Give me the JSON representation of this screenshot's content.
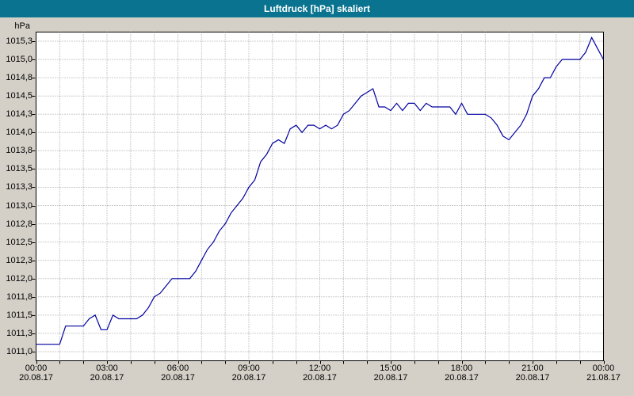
{
  "window": {
    "title": "Luftdruck [hPa] skaliert"
  },
  "colors": {
    "titlebar_bg": "#0a7490",
    "titlebar_text": "#ffffff",
    "page_bg": "#d4d0c8",
    "plot_bg": "#ffffff",
    "plot_border": "#000000",
    "grid": "#9a9a9a",
    "line": "#0000a0",
    "tick": "#000000",
    "label_text": "#000000"
  },
  "chart_data": {
    "type": "line",
    "title": "Luftdruck [hPa] skaliert",
    "ylabel": "hPa",
    "xlabel": "",
    "ylim": [
      1010.875,
      1015.375
    ],
    "xlim_hours": [
      0,
      24
    ],
    "grid": "dotted; vertical every 1 h, horizontal every 0.25 hPa",
    "legend": "none",
    "y_ticks": [
      {
        "value": 1015.25,
        "label": "1015,3"
      },
      {
        "value": 1015.0,
        "label": "1015,0"
      },
      {
        "value": 1014.75,
        "label": "1014,8"
      },
      {
        "value": 1014.5,
        "label": "1014,5"
      },
      {
        "value": 1014.25,
        "label": "1014,3"
      },
      {
        "value": 1014.0,
        "label": "1014,0"
      },
      {
        "value": 1013.75,
        "label": "1013,8"
      },
      {
        "value": 1013.5,
        "label": "1013,5"
      },
      {
        "value": 1013.25,
        "label": "1013,3"
      },
      {
        "value": 1013.0,
        "label": "1013,0"
      },
      {
        "value": 1012.75,
        "label": "1012,8"
      },
      {
        "value": 1012.5,
        "label": "1012,5"
      },
      {
        "value": 1012.25,
        "label": "1012,3"
      },
      {
        "value": 1012.0,
        "label": "1012,0"
      },
      {
        "value": 1011.75,
        "label": "1011,8"
      },
      {
        "value": 1011.5,
        "label": "1011,5"
      },
      {
        "value": 1011.25,
        "label": "1011,3"
      },
      {
        "value": 1011.0,
        "label": "1011,0"
      }
    ],
    "x_ticks": [
      {
        "hour": 0,
        "time": "00:00",
        "date": "20.08.17"
      },
      {
        "hour": 3,
        "time": "03:00",
        "date": "20.08.17"
      },
      {
        "hour": 6,
        "time": "06:00",
        "date": "20.08.17"
      },
      {
        "hour": 9,
        "time": "09:00",
        "date": "20.08.17"
      },
      {
        "hour": 12,
        "time": "12:00",
        "date": "20.08.17"
      },
      {
        "hour": 15,
        "time": "15:00",
        "date": "20.08.17"
      },
      {
        "hour": 18,
        "time": "18:00",
        "date": "20.08.17"
      },
      {
        "hour": 21,
        "time": "21:00",
        "date": "20.08.17"
      },
      {
        "hour": 24,
        "time": "00:00",
        "date": "21.08.17"
      }
    ],
    "x_minor_tick_hours": 1,
    "series": [
      {
        "name": "Luftdruck",
        "unit": "hPa",
        "x_start_hour": 0,
        "x_step_hours": 0.25,
        "values": [
          1011.1,
          1011.1,
          1011.1,
          1011.1,
          1011.1,
          1011.35,
          1011.35,
          1011.35,
          1011.35,
          1011.45,
          1011.5,
          1011.3,
          1011.3,
          1011.5,
          1011.45,
          1011.45,
          1011.45,
          1011.45,
          1011.5,
          1011.6,
          1011.75,
          1011.8,
          1011.9,
          1012.0,
          1012.0,
          1012.0,
          1012.0,
          1012.1,
          1012.25,
          1012.4,
          1012.5,
          1012.65,
          1012.75,
          1012.9,
          1013.0,
          1013.1,
          1013.25,
          1013.35,
          1013.6,
          1013.7,
          1013.85,
          1013.9,
          1013.85,
          1014.05,
          1014.1,
          1014.0,
          1014.1,
          1014.1,
          1014.05,
          1014.1,
          1014.05,
          1014.1,
          1014.25,
          1014.3,
          1014.4,
          1014.5,
          1014.55,
          1014.6,
          1014.35,
          1014.35,
          1014.3,
          1014.4,
          1014.3,
          1014.4,
          1014.4,
          1014.3,
          1014.4,
          1014.35,
          1014.35,
          1014.35,
          1014.35,
          1014.25,
          1014.4,
          1014.25,
          1014.25,
          1014.25,
          1014.25,
          1014.2,
          1014.1,
          1013.95,
          1013.9,
          1014.0,
          1014.1,
          1014.25,
          1014.5,
          1014.6,
          1014.75,
          1014.75,
          1014.9,
          1015.0,
          1015.0,
          1015.0,
          1015.0,
          1015.1,
          1015.3,
          1015.15,
          1015.0
        ]
      }
    ]
  }
}
